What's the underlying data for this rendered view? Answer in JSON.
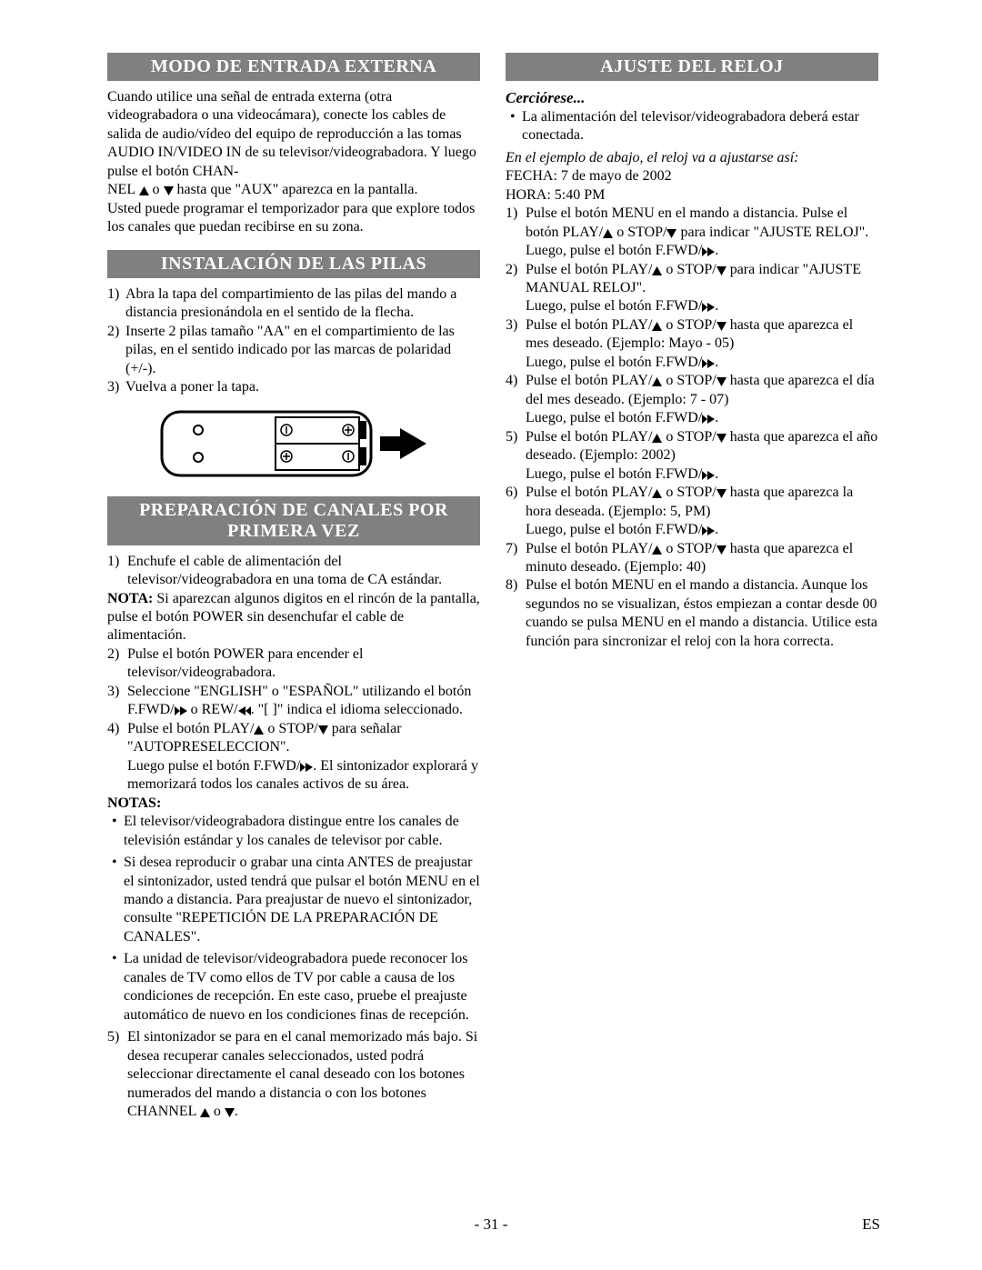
{
  "colors": {
    "header_bg": "#808080",
    "header_text": "#ffffff",
    "body_text": "#000000",
    "page_bg": "#ffffff"
  },
  "typography": {
    "body_fontsize_pt": 12,
    "header_fontsize_pt": 15,
    "font_family": "Times New Roman"
  },
  "icons": {
    "up": "▲",
    "down": "▼",
    "ffwd": "▶ (double-triangle right)",
    "rew": "◀ (double-triangle left)"
  },
  "left": {
    "sec1": {
      "title": "MODO DE ENTRADA EXTERNA",
      "para1a": "Cuando utilice una señal de entrada externa (otra videograbadora o una videocámara), conecte los cables de salida de audio/vídeo del equipo de reproducción a las tomas AUDIO IN/VIDEO IN de su televisor/videograbadora. Y luego pulse el botón CHAN-",
      "para1b": "NEL ",
      "para1c": " o ",
      "para1d": " hasta que \"AUX\" aparezca en la pantalla.",
      "para2": "Usted puede programar el temporizador para que explore todos los canales que puedan recibirse en su zona."
    },
    "sec2": {
      "title": "INSTALACIÓN DE LAS PILAS",
      "items": [
        "Abra la tapa del compartimiento de las pilas del mando a distancia presionándola en el sentido de la flecha.",
        "Inserte 2 pilas tamaño \"AA\" en el compartimiento de las pilas, en el sentido indicado por las marcas de polaridad (+/-).",
        "Vuelva a poner la tapa."
      ]
    },
    "sec3": {
      "title": "PREPARACIÓN DE CANALES POR PRIMERA VEZ",
      "item1": "Enchufe el cable de alimentación del televisor/videograbadora en una toma de CA estándar.",
      "nota": "NOTA: ",
      "nota_body": "Si aparezcan algunos digitos en el rincón de la pantalla, pulse el botón POWER sin desenchufar el cable de alimentación.",
      "item2": "Pulse el botón POWER para encender el televisor/videograbadora.",
      "item3a": "Seleccione \"ENGLISH\" o \"ESPAÑOL\" utilizando el botón F.FWD/",
      "item3b": " o REW/",
      "item3c": ". \"[ ]\" indica el idioma seleccionado.",
      "item4a": "Pulse el botón PLAY/",
      "item4b": " o STOP/",
      "item4c": " para señalar \"AUTOPRESELECCION\".",
      "item4d": "Luego pulse el botón F.FWD/",
      "item4e": ". El sintonizador explorará y memorizará todos los canales activos de su área.",
      "notas_label": "NOTAS:",
      "bullets": [
        "El televisor/videograbadora distingue entre los canales de televisión estándar y los canales de televisor por cable.",
        "Si desea reproducir o grabar una cinta ANTES de preajustar el sintonizador, usted tendrá que pulsar el botón MENU en el mando a distancia. Para preajustar de nuevo el sintonizador, consulte \"REPETICIÓN DE LA PREPARACIÓN DE CANALES\".",
        "La unidad de televisor/videograbadora puede reconocer los canales de TV como ellos de TV por cable a causa de los condiciones de recepción. En este caso, pruebe el preajuste automático de nuevo en los condiciones finas de recepción."
      ],
      "item5a": "El sintonizador se para en el canal memorizado más bajo. Si desea recuperar canales seleccionados, usted podrá seleccionar directamente el canal deseado con los botones numerados del mando a distancia o con los botones CHANNEL ",
      "item5b": " o ",
      "item5c": "."
    }
  },
  "right": {
    "sec1": {
      "title": "AJUSTE DEL RELOJ",
      "cerciorese": "Cerciórese...",
      "bullet1": "La alimentación del televisor/videograbadora deberá estar conectada.",
      "italic": "En el ejemplo de abajo, el reloj va a ajustarse así:",
      "fecha": "FECHA: 7 de mayo de 2002",
      "hora": "HORA: 5:40 PM",
      "steps": [
        {
          "a": "Pulse el botón MENU en el mando a distancia. Pulse el botón PLAY/",
          "b": " o STOP/",
          "c": " para indicar \"AJUSTE RELOJ\".",
          "d": "Luego, pulse el botón F.FWD/",
          "e": "."
        },
        {
          "a": "Pulse el botón PLAY/",
          "b": " o STOP/",
          "c": " para indicar \"AJUSTE MANUAL RELOJ\".",
          "d": "Luego, pulse el botón F.FWD/",
          "e": "."
        },
        {
          "a": "Pulse el botón PLAY/",
          "b": " o STOP/",
          "c": " hasta que aparezca el mes deseado. (Ejemplo: Mayo - 05)",
          "d": "Luego, pulse el botón F.FWD/",
          "e": "."
        },
        {
          "a": "Pulse el botón PLAY/",
          "b": " o STOP/",
          "c": " hasta que aparezca el día del mes deseado. (Ejemplo: 7 - 07)",
          "d": "Luego, pulse el botón F.FWD/",
          "e": "."
        },
        {
          "a": "Pulse el botón PLAY/",
          "b": " o STOP/",
          "c": " hasta que aparezca el año deseado. (Ejemplo: 2002)",
          "d": "Luego, pulse el botón F.FWD/",
          "e": "."
        },
        {
          "a": "Pulse el botón PLAY/",
          "b": " o STOP/",
          "c": " hasta que aparezca la hora deseada. (Ejemplo: 5, PM)",
          "d": "Luego, pulse el botón F.FWD/",
          "e": "."
        },
        {
          "a": "Pulse el botón PLAY/",
          "b": " o STOP/",
          "c": " hasta que aparezca el minuto deseado. (Ejemplo: 40)",
          "d": "",
          "e": ""
        }
      ],
      "step8": "Pulse el botón MENU en el mando a distancia. Aunque los segundos no se visualizan, éstos empiezan a contar desde 00 cuando se pulsa MENU en el mando a distancia. Utilice esta función para sincronizar el reloj con la hora correcta."
    }
  },
  "footer": {
    "page": "- 31 -",
    "lang": "ES"
  }
}
